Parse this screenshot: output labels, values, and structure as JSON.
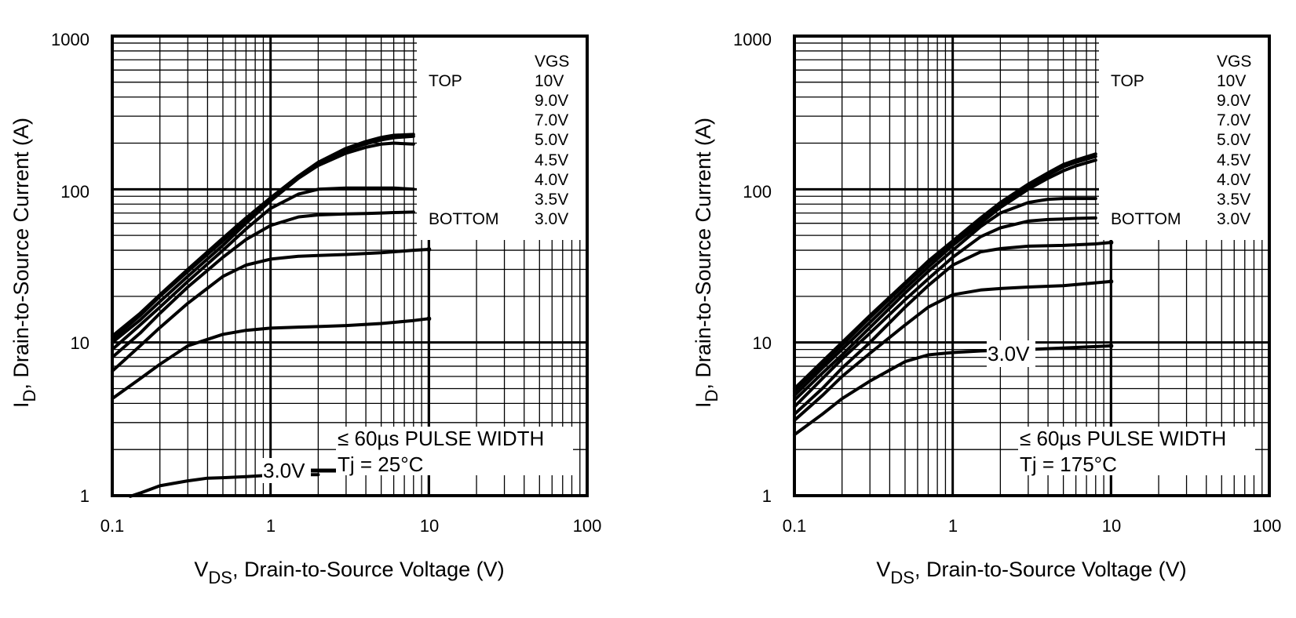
{
  "chart_data": [
    {
      "type": "line",
      "xscale": "log",
      "yscale": "log",
      "xlim": [
        0.1,
        100
      ],
      "ylim": [
        1,
        1000
      ],
      "grid": true,
      "xlabel": "V",
      "xlabel_sub": "DS",
      "xlabel_rest": ", Drain-to-Source Voltage (V)",
      "ylabel": "I",
      "ylabel_sub": "D",
      "ylabel_rest": ", Drain-to-Source Current (A)",
      "xticks": [
        0.1,
        1,
        10,
        100
      ],
      "xtick_labels": [
        "0.1",
        "1",
        "10",
        "100"
      ],
      "yticks": [
        1,
        10,
        100,
        1000
      ],
      "ytick_labels": [
        "1",
        "10",
        "100",
        "1000"
      ],
      "legend": {
        "header": "VGS",
        "placement": "top-right",
        "top_label": "TOP",
        "bottom_label": "BOTTOM",
        "entries": [
          "10V",
          "9.0V",
          "7.0V",
          "5.0V",
          "4.5V",
          "4.0V",
          "3.5V",
          "3.0V"
        ]
      },
      "annotations": {
        "pulse": "≤ 60µs PULSE WIDTH",
        "temp": "Tj = 25°C",
        "curve_label": "3.0V"
      },
      "series": [
        {
          "name": "10V",
          "x": [
            0.1,
            0.15,
            0.2,
            0.3,
            0.5,
            0.7,
            1,
            1.5,
            2,
            3,
            4,
            5,
            6,
            8
          ],
          "y": [
            11,
            15.5,
            20.5,
            30,
            48,
            65,
            88,
            122,
            150,
            185,
            205,
            218,
            225,
            228
          ]
        },
        {
          "name": "9.0V",
          "x": [
            0.1,
            0.15,
            0.2,
            0.3,
            0.5,
            0.7,
            1,
            1.5,
            2,
            3,
            4,
            5,
            6,
            8
          ],
          "y": [
            10.5,
            15,
            20,
            29,
            46,
            63,
            86,
            120,
            147,
            180,
            198,
            210,
            217,
            222
          ]
        },
        {
          "name": "7.0V",
          "x": [
            0.1,
            0.15,
            0.2,
            0.3,
            0.5,
            0.7,
            1,
            1.5,
            2,
            3,
            4,
            5,
            6,
            8
          ],
          "y": [
            10,
            14,
            18.5,
            27,
            43,
            60,
            84,
            118,
            143,
            172,
            188,
            197,
            200,
            197
          ]
        },
        {
          "name": "5.0V",
          "x": [
            0.1,
            0.15,
            0.2,
            0.3,
            0.5,
            0.7,
            1,
            1.5,
            2,
            3,
            4,
            5,
            6,
            8
          ],
          "y": [
            9,
            13,
            17,
            25,
            40,
            55,
            75,
            93,
            100,
            102,
            102,
            102,
            102,
            100
          ]
        },
        {
          "name": "4.5V",
          "x": [
            0.1,
            0.15,
            0.2,
            0.3,
            0.5,
            0.7,
            1,
            1.5,
            2,
            3,
            4,
            5,
            6,
            8
          ],
          "y": [
            8,
            11.5,
            15.5,
            23,
            36,
            47,
            58,
            66,
            68,
            69,
            69.5,
            70,
            70.5,
            71
          ]
        },
        {
          "name": "4.0V",
          "x": [
            0.1,
            0.15,
            0.2,
            0.3,
            0.5,
            0.7,
            1,
            1.5,
            2,
            3,
            5,
            8,
            10
          ],
          "y": [
            6.5,
            9.5,
            12.5,
            18,
            27,
            32,
            35,
            36.5,
            37,
            37.5,
            38.5,
            40,
            40.5
          ]
        },
        {
          "name": "3.5V",
          "x": [
            0.1,
            0.15,
            0.2,
            0.3,
            0.5,
            0.7,
            1,
            1.5,
            2,
            3,
            5,
            8,
            10
          ],
          "y": [
            4.3,
            5.8,
            7.2,
            9.5,
            11.3,
            12,
            12.4,
            12.6,
            12.7,
            12.9,
            13.3,
            13.9,
            14.3
          ]
        },
        {
          "name": "3.0V",
          "x": [
            0.13,
            0.15,
            0.2,
            0.3,
            0.4,
            0.5,
            0.7,
            1,
            1.5,
            2
          ],
          "y": [
            0.99,
            1.04,
            1.16,
            1.25,
            1.3,
            1.31,
            1.33,
            1.36,
            1.37,
            1.37
          ]
        }
      ]
    },
    {
      "type": "line",
      "xscale": "log",
      "yscale": "log",
      "xlim": [
        0.1,
        100
      ],
      "ylim": [
        1,
        1000
      ],
      "grid": true,
      "xlabel": "V",
      "xlabel_sub": "DS",
      "xlabel_rest": ", Drain-to-Source Voltage (V)",
      "ylabel": "I",
      "ylabel_sub": "D",
      "ylabel_rest": ", Drain-to-Source Current (A)",
      "xticks": [
        0.1,
        1,
        10,
        100
      ],
      "xtick_labels": [
        "0.1",
        "1",
        "10",
        "100"
      ],
      "yticks": [
        1,
        10,
        100,
        1000
      ],
      "ytick_labels": [
        "1",
        "10",
        "100",
        "1000"
      ],
      "legend": {
        "header": "VGS",
        "placement": "top-right",
        "top_label": "TOP",
        "bottom_label": "BOTTOM",
        "entries": [
          "10V",
          "9.0V",
          "7.0V",
          "5.0V",
          "4.5V",
          "4.0V",
          "3.5V",
          "3.0V"
        ]
      },
      "annotations": {
        "pulse": "≤ 60µs PULSE WIDTH",
        "temp": "Tj = 175°C",
        "curve_label": "3.0V"
      },
      "series": [
        {
          "name": "10V",
          "x": [
            0.1,
            0.15,
            0.2,
            0.3,
            0.5,
            0.7,
            1,
            1.5,
            2,
            3,
            4,
            5,
            6,
            8
          ],
          "y": [
            5,
            7.5,
            10,
            15,
            24.5,
            34,
            46,
            65,
            82,
            108,
            128,
            145,
            155,
            170
          ]
        },
        {
          "name": "9.0V",
          "x": [
            0.1,
            0.15,
            0.2,
            0.3,
            0.5,
            0.7,
            1,
            1.5,
            2,
            3,
            4,
            5,
            6,
            8
          ],
          "y": [
            4.8,
            7.2,
            9.6,
            14.5,
            24,
            33,
            45,
            63,
            80,
            105,
            124,
            140,
            150,
            164
          ]
        },
        {
          "name": "7.0V",
          "x": [
            0.1,
            0.15,
            0.2,
            0.3,
            0.5,
            0.7,
            1,
            1.5,
            2,
            3,
            4,
            5,
            6,
            8
          ],
          "y": [
            4.5,
            6.8,
            9,
            13.5,
            22.5,
            31,
            43,
            60,
            76,
            100,
            118,
            132,
            142,
            155
          ]
        },
        {
          "name": "5.0V",
          "x": [
            0.1,
            0.15,
            0.2,
            0.3,
            0.5,
            0.7,
            1,
            1.5,
            2,
            3,
            4,
            5,
            6,
            8
          ],
          "y": [
            4.2,
            6.3,
            8.3,
            12.5,
            21,
            29,
            40,
            57,
            70,
            82,
            86,
            87,
            87,
            87
          ]
        },
        {
          "name": "4.5V",
          "x": [
            0.1,
            0.15,
            0.2,
            0.3,
            0.5,
            0.7,
            1,
            1.5,
            2,
            3,
            4,
            5,
            6,
            8
          ],
          "y": [
            3.8,
            5.8,
            7.8,
            11.5,
            19,
            26,
            36,
            49,
            56,
            62,
            63.5,
            64,
            64.5,
            65
          ]
        },
        {
          "name": "4.0V",
          "x": [
            0.1,
            0.15,
            0.2,
            0.3,
            0.5,
            0.7,
            1,
            1.5,
            2,
            3,
            5,
            8,
            10
          ],
          "y": [
            3.4,
            5,
            6.8,
            10,
            17,
            23.5,
            32,
            39,
            41,
            42.5,
            43,
            44,
            45
          ]
        },
        {
          "name": "3.5V",
          "x": [
            0.1,
            0.15,
            0.2,
            0.3,
            0.5,
            0.7,
            1,
            1.5,
            2,
            3,
            5,
            8,
            10
          ],
          "y": [
            3.1,
            4.5,
            6,
            8.5,
            13,
            17,
            20.5,
            22,
            22.5,
            23,
            23.5,
            24.5,
            25
          ]
        },
        {
          "name": "3.0V",
          "x": [
            0.1,
            0.15,
            0.2,
            0.3,
            0.5,
            0.7,
            1,
            1.5,
            2,
            3,
            5,
            8,
            10
          ],
          "y": [
            2.5,
            3.4,
            4.3,
            5.6,
            7.5,
            8.3,
            8.6,
            8.8,
            8.9,
            9,
            9.2,
            9.4,
            9.5
          ]
        }
      ]
    }
  ]
}
